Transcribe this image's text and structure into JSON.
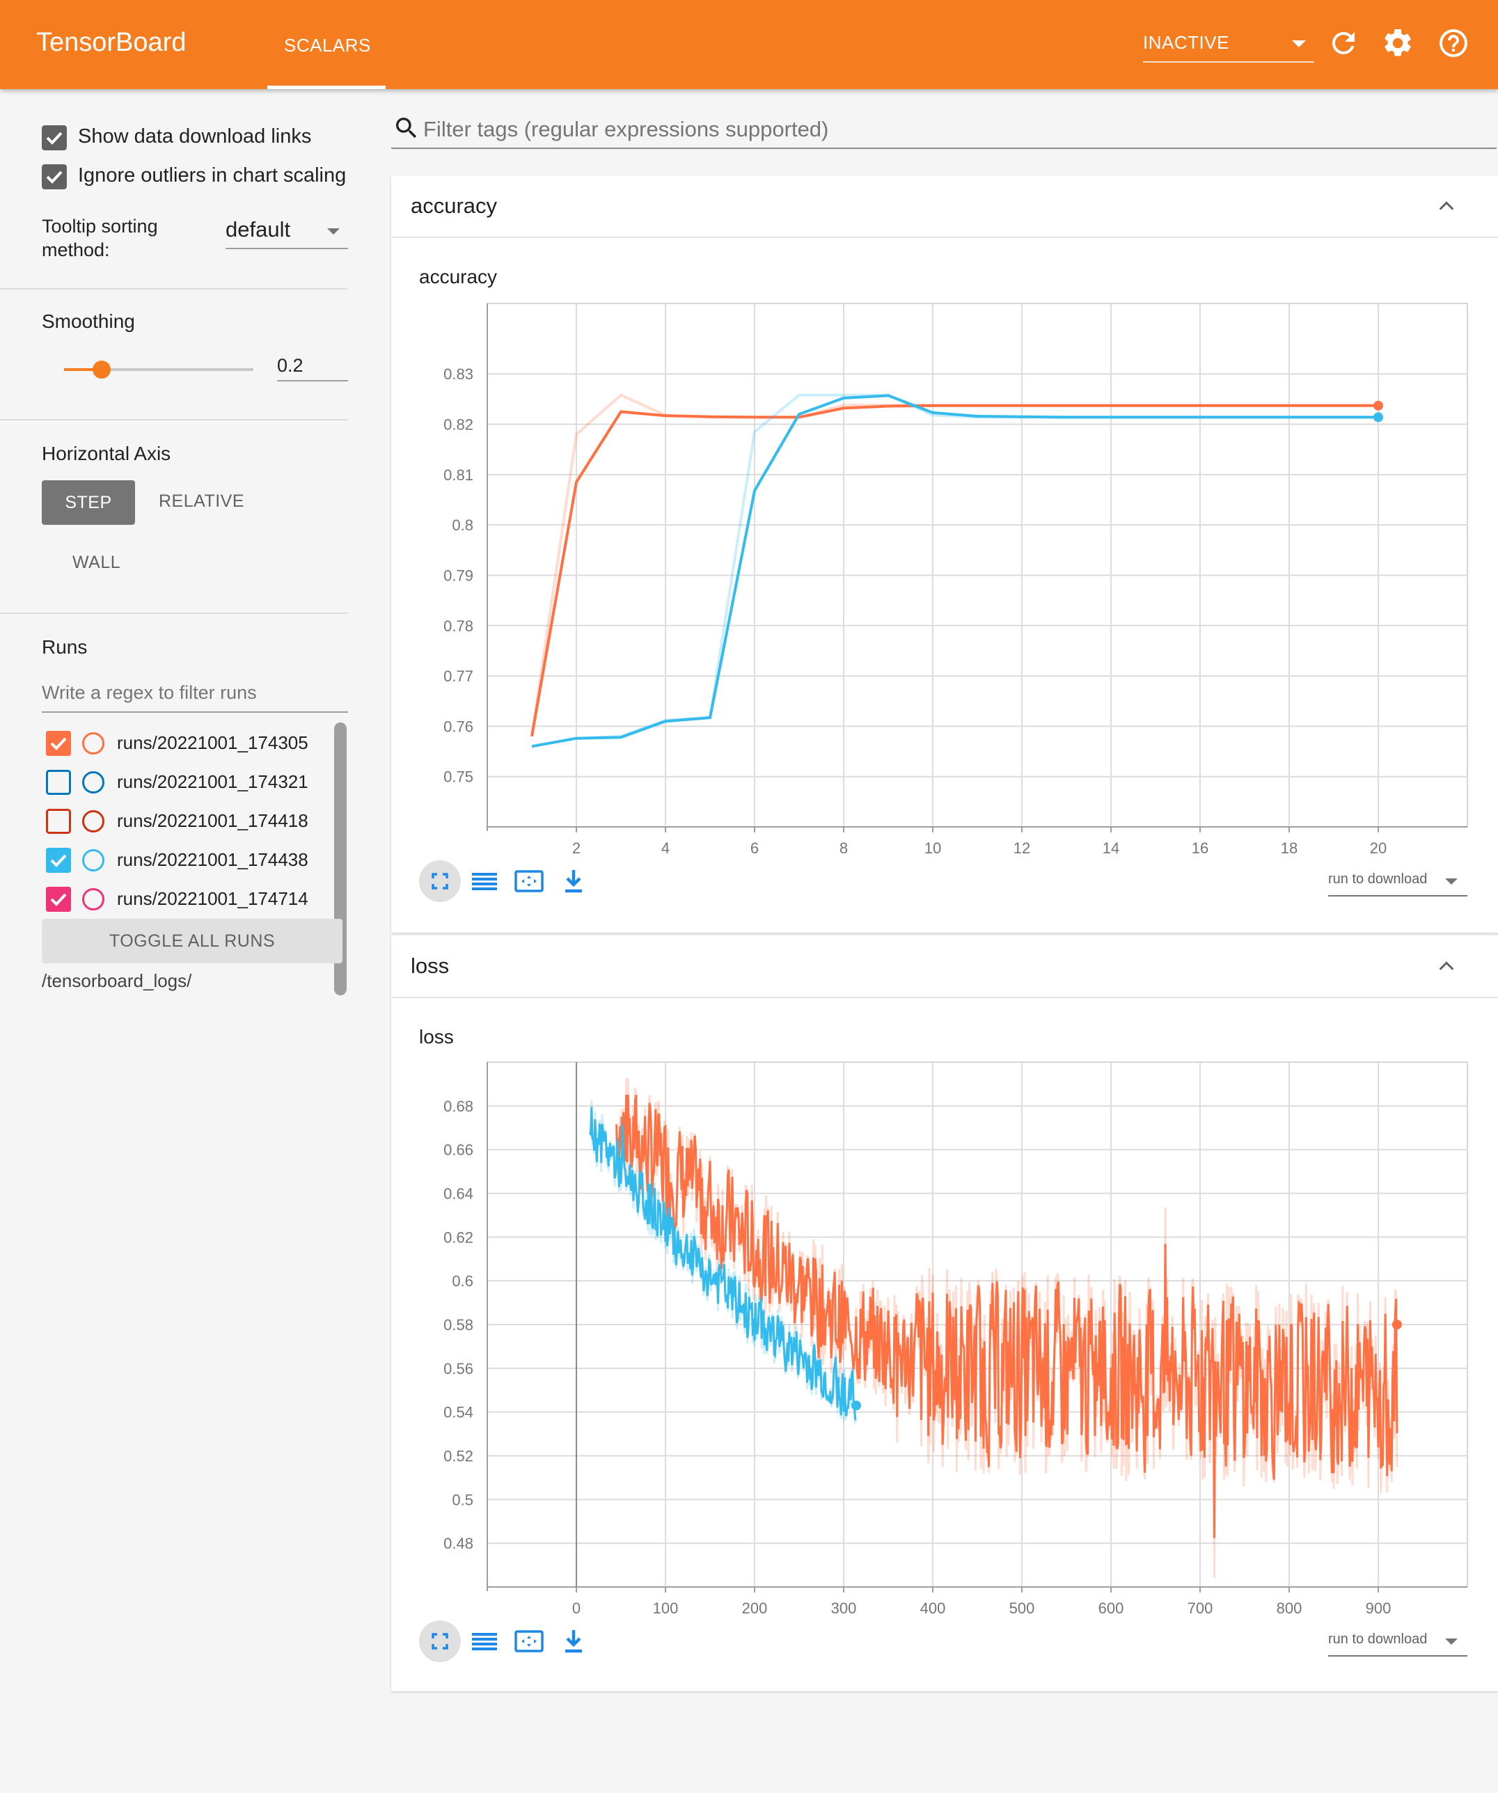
{
  "header": {
    "brand": "TensorBoard",
    "tab": "SCALARS",
    "status_select": "INACTIVE",
    "bg_color": "#f57c1f",
    "icons": [
      "refresh-icon",
      "settings-icon",
      "help-icon"
    ]
  },
  "sidebar": {
    "show_download_links": {
      "label": "Show data download links",
      "checked": true
    },
    "ignore_outliers": {
      "label": "Ignore outliers in chart scaling",
      "checked": true
    },
    "tooltip_sorting": {
      "label": "Tooltip sorting method:",
      "value": "default"
    },
    "smoothing": {
      "label": "Smoothing",
      "value": "0.2",
      "slider_fraction": 0.2
    },
    "horizontal_axis": {
      "label": "Horizontal Axis",
      "options": [
        "STEP",
        "RELATIVE",
        "WALL"
      ],
      "selected": "STEP"
    },
    "runs": {
      "label": "Runs",
      "filter_placeholder": "Write a regex to filter runs",
      "items": [
        {
          "name": "runs/20221001_174305",
          "checked": true,
          "color": "#ff7043"
        },
        {
          "name": "runs/20221001_174321",
          "checked": false,
          "color": "#0077bb"
        },
        {
          "name": "runs/20221001_174418",
          "checked": false,
          "color": "#cc3311"
        },
        {
          "name": "runs/20221001_174438",
          "checked": true,
          "color": "#33bbee"
        },
        {
          "name": "runs/20221001_174714",
          "checked": true,
          "color": "#ee3377"
        }
      ],
      "toggle_label": "TOGGLE ALL RUNS",
      "log_dir": "/tensorboard_logs/"
    }
  },
  "main": {
    "filter_placeholder": "Filter tags (regular expressions supported)",
    "cards": [
      {
        "title": "accuracy",
        "chart_title": "accuracy",
        "download_label": "run to download"
      },
      {
        "title": "loss",
        "chart_title": "loss",
        "download_label": "run to download"
      }
    ]
  },
  "chart_data": [
    {
      "type": "line",
      "title": "accuracy",
      "xlim": [
        0,
        22
      ],
      "ylim": [
        0.74,
        0.844
      ],
      "x_ticks": [
        2,
        4,
        6,
        8,
        10,
        12,
        14,
        16,
        18,
        20
      ],
      "y_ticks": [
        0.75,
        0.76,
        0.77,
        0.78,
        0.79,
        0.8,
        0.81,
        0.82,
        0.83
      ],
      "y_tick_labels": [
        "0.75",
        "0.76",
        "0.77",
        "0.78",
        "0.79",
        "0.8",
        "0.81",
        "0.82",
        "0.83"
      ],
      "series": [
        {
          "color": "#ff7043",
          "x": [
            1,
            2,
            3,
            4,
            5,
            6,
            7,
            8,
            9,
            10,
            11,
            12,
            13,
            14,
            15,
            16,
            17,
            18,
            19,
            20
          ],
          "raw": [
            0.758,
            0.818,
            0.8258,
            0.8218,
            0.8214,
            0.8214,
            0.8214,
            0.8238,
            0.8238,
            0.8238,
            0.8238,
            0.8238,
            0.8238,
            0.8238,
            0.8238,
            0.8238,
            0.8238,
            0.8238,
            0.8238,
            0.8238
          ],
          "smoothed": [
            0.758,
            0.8085,
            0.8225,
            0.8217,
            0.8215,
            0.8214,
            0.8214,
            0.8232,
            0.8236,
            0.8237,
            0.8237,
            0.8237,
            0.8237,
            0.8237,
            0.8237,
            0.8237,
            0.8237,
            0.8237,
            0.8237,
            0.8237
          ]
        },
        {
          "color": "#33bbee",
          "x": [
            1,
            2,
            3,
            4,
            5,
            6,
            7,
            8,
            9,
            10,
            11,
            12,
            13,
            14,
            15,
            16,
            17,
            18,
            19,
            20
          ],
          "raw": [
            0.756,
            0.7576,
            0.758,
            0.7612,
            0.7618,
            0.8185,
            0.8258,
            0.8258,
            0.8258,
            0.8218,
            0.8214,
            0.8214,
            0.8214,
            0.8214,
            0.8214,
            0.8214,
            0.8214,
            0.8214,
            0.8214,
            0.8214
          ],
          "smoothed": [
            0.756,
            0.7576,
            0.7578,
            0.761,
            0.7617,
            0.8068,
            0.822,
            0.8252,
            0.8257,
            0.8223,
            0.8216,
            0.8215,
            0.8214,
            0.8214,
            0.8214,
            0.8214,
            0.8214,
            0.8214,
            0.8214,
            0.8214
          ]
        }
      ]
    },
    {
      "type": "line",
      "title": "loss",
      "xlim": [
        -100,
        1000
      ],
      "ylim": [
        0.46,
        0.7
      ],
      "x_ticks": [
        0,
        100,
        200,
        300,
        400,
        500,
        600,
        700,
        800,
        900
      ],
      "y_ticks": [
        0.48,
        0.5,
        0.52,
        0.54,
        0.56,
        0.58,
        0.6,
        0.62,
        0.64,
        0.66,
        0.68
      ],
      "y_tick_labels": [
        "0.48",
        "0.5",
        "0.52",
        "0.54",
        "0.56",
        "0.58",
        "0.6",
        "0.62",
        "0.64",
        "0.66",
        "0.68"
      ],
      "series": [
        {
          "color": "#ff7043",
          "x_range": [
            45,
            921
          ],
          "start": 0.672,
          "trend": [
            [
              45,
              0.672
            ],
            [
              300,
              0.58
            ],
            [
              400,
              0.56
            ],
            [
              921,
              0.55
            ]
          ],
          "noise_amp": 0.028,
          "last_value": 0.58
        },
        {
          "color": "#33bbee",
          "x_range": [
            15,
            314
          ],
          "start": 0.67,
          "trend": [
            [
              15,
              0.67
            ],
            [
              120,
              0.615
            ],
            [
              200,
              0.582
            ],
            [
              314,
              0.545
            ]
          ],
          "noise_amp": 0.014,
          "last_value": 0.543
        }
      ]
    }
  ]
}
